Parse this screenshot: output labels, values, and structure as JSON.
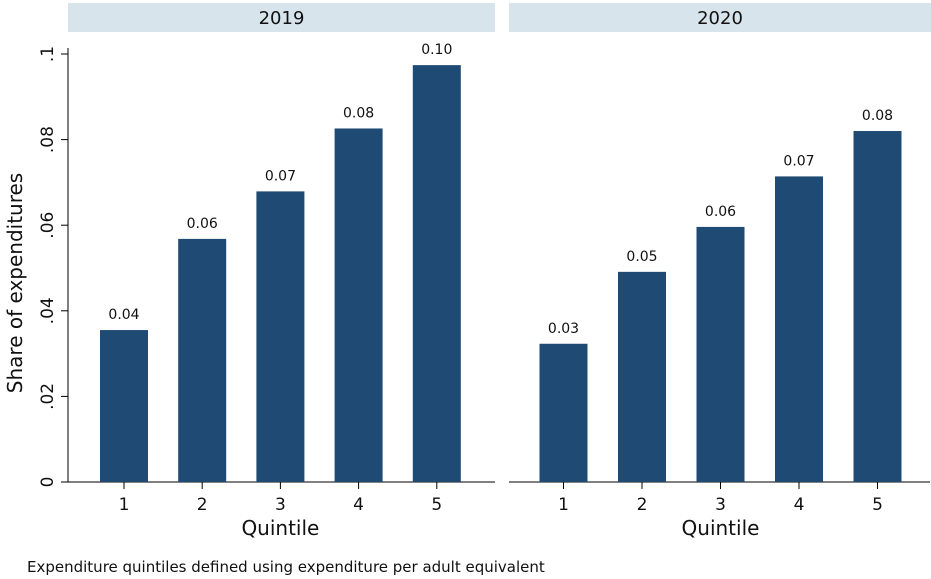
{
  "chart_data": {
    "type": "bar",
    "ylabel": "Share of expenditures",
    "xlabel": "Quintile",
    "ylim": [
      0,
      0.1
    ],
    "yticks": [
      {
        "value": 0,
        "label": "0"
      },
      {
        "value": 0.02,
        "label": ".02"
      },
      {
        "value": 0.04,
        "label": ".04"
      },
      {
        "value": 0.06,
        "label": ".06"
      },
      {
        "value": 0.08,
        "label": ".08"
      },
      {
        "value": 0.1,
        "label": ".1"
      }
    ],
    "categories": [
      "1",
      "2",
      "3",
      "4",
      "5"
    ],
    "bar_color": "#1f4a73",
    "strip_color": "#d7e4ec",
    "panels": [
      {
        "title": "2019",
        "values": [
          0.0355,
          0.0568,
          0.0679,
          0.0826,
          0.0974
        ],
        "labels": [
          "0.04",
          "0.06",
          "0.07",
          "0.08",
          "0.10"
        ]
      },
      {
        "title": "2020",
        "values": [
          0.0323,
          0.0491,
          0.0596,
          0.0714,
          0.082
        ],
        "labels": [
          "0.03",
          "0.05",
          "0.06",
          "0.07",
          "0.08"
        ]
      }
    ],
    "note": "Expenditure quintiles defined using expenditure per adult equivalent"
  }
}
